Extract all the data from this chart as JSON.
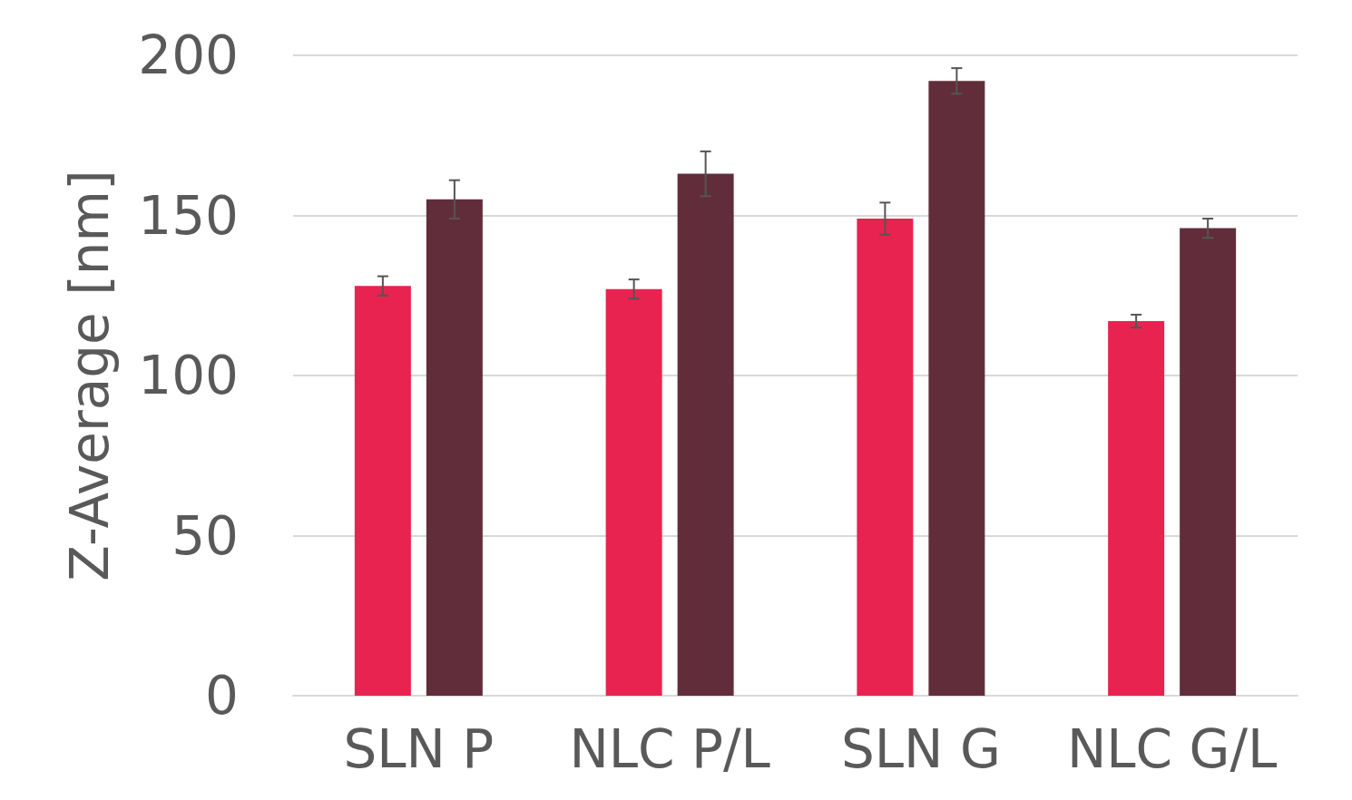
{
  "chart_data": {
    "type": "bar",
    "ylabel": "Z-Average [nm]",
    "categories": [
      "SLN P",
      "NLC P/L",
      "SLN G",
      "NLC G/L"
    ],
    "series": [
      {
        "color": "#e8234f",
        "values": [
          128,
          127,
          149,
          117
        ],
        "errors": [
          3,
          3,
          5,
          2
        ]
      },
      {
        "color": "#622d3a",
        "values": [
          155,
          163,
          192,
          146
        ],
        "errors": [
          6,
          7,
          4,
          3
        ]
      }
    ],
    "ylim": [
      0,
      200
    ],
    "yticks": [
      0,
      50,
      100,
      150,
      200
    ],
    "grid": "y"
  }
}
